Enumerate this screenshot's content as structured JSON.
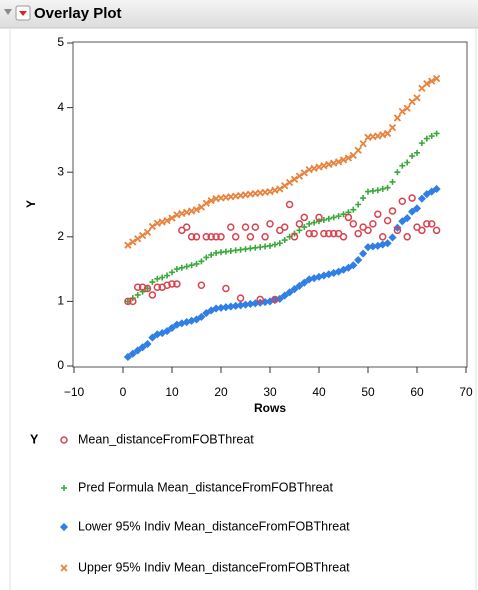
{
  "chart_data": {
    "type": "scatter",
    "title": "Overlay Plot",
    "x_label": "Rows",
    "y_label": "Y",
    "legend_title": "Y",
    "grid": false,
    "xlim": [
      -10,
      70
    ],
    "xticks": [
      {
        "value": -10,
        "label": "−10"
      },
      0,
      10,
      20,
      30,
      40,
      50,
      60,
      70
    ],
    "ylim": [
      0,
      5
    ],
    "yticks": [
      0,
      1,
      2,
      3,
      4,
      5
    ],
    "x": [
      1,
      2,
      3,
      4,
      5,
      6,
      7,
      8,
      9,
      10,
      11,
      12,
      13,
      14,
      15,
      16,
      17,
      18,
      19,
      20,
      21,
      22,
      23,
      24,
      25,
      26,
      27,
      28,
      29,
      30,
      31,
      32,
      33,
      34,
      35,
      36,
      37,
      38,
      39,
      40,
      41,
      42,
      43,
      44,
      45,
      46,
      47,
      48,
      49,
      50,
      51,
      52,
      53,
      54,
      55,
      56,
      57,
      58,
      59,
      60,
      61,
      62,
      63,
      64
    ],
    "series": [
      {
        "name": "Mean_distanceFromFOBThreat",
        "color": "#d9434f",
        "marker": "circle",
        "values": [
          1.0,
          1.0,
          1.22,
          1.22,
          1.2,
          1.1,
          1.22,
          1.22,
          1.25,
          1.27,
          1.27,
          2.1,
          2.15,
          2.0,
          2.0,
          1.25,
          2.0,
          2.0,
          2.0,
          2.0,
          1.2,
          2.15,
          2.0,
          1.05,
          2.15,
          2.0,
          2.15,
          1.03,
          2.0,
          2.2,
          1.03,
          2.1,
          2.15,
          2.5,
          2.0,
          2.2,
          2.3,
          2.05,
          2.05,
          2.3,
          2.05,
          2.05,
          2.05,
          2.05,
          2.0,
          2.3,
          2.2,
          2.05,
          2.15,
          2.1,
          2.2,
          2.35,
          2.0,
          2.25,
          2.4,
          2.1,
          2.55,
          2.0,
          2.6,
          2.15,
          2.1,
          2.2,
          2.2,
          2.1
        ]
      },
      {
        "name": "Pred Formula Mean_distanceFromFOBThreat",
        "color": "#3aa83a",
        "marker": "plus",
        "values": [
          1.0,
          1.05,
          1.1,
          1.15,
          1.2,
          1.3,
          1.35,
          1.37,
          1.4,
          1.45,
          1.5,
          1.52,
          1.54,
          1.56,
          1.58,
          1.62,
          1.68,
          1.72,
          1.75,
          1.76,
          1.77,
          1.78,
          1.79,
          1.8,
          1.81,
          1.82,
          1.83,
          1.84,
          1.85,
          1.86,
          1.88,
          1.9,
          1.95,
          2.0,
          2.05,
          2.1,
          2.15,
          2.2,
          2.22,
          2.24,
          2.26,
          2.28,
          2.3,
          2.32,
          2.35,
          2.38,
          2.42,
          2.5,
          2.6,
          2.7,
          2.71,
          2.72,
          2.74,
          2.76,
          2.85,
          3.0,
          3.1,
          3.15,
          3.25,
          3.3,
          3.45,
          3.52,
          3.56,
          3.6
        ]
      },
      {
        "name": "Lower 95% Indiv Mean_distanceFromFOBThreat",
        "color": "#2f7fe6",
        "marker": "diamond",
        "values": [
          0.14,
          0.19,
          0.24,
          0.29,
          0.34,
          0.44,
          0.49,
          0.51,
          0.54,
          0.59,
          0.64,
          0.66,
          0.68,
          0.7,
          0.72,
          0.76,
          0.82,
          0.86,
          0.89,
          0.9,
          0.91,
          0.92,
          0.93,
          0.94,
          0.95,
          0.96,
          0.97,
          0.98,
          0.99,
          1.0,
          1.02,
          1.04,
          1.09,
          1.14,
          1.19,
          1.24,
          1.29,
          1.34,
          1.36,
          1.38,
          1.4,
          1.42,
          1.44,
          1.46,
          1.49,
          1.52,
          1.56,
          1.64,
          1.74,
          1.84,
          1.85,
          1.86,
          1.88,
          1.9,
          1.99,
          2.14,
          2.24,
          2.29,
          2.39,
          2.44,
          2.59,
          2.66,
          2.7,
          2.74
        ]
      },
      {
        "name": "Upper 95% Indiv Mean_distanceFromFOBThreat",
        "color": "#e8823c",
        "marker": "x",
        "values": [
          1.87,
          1.92,
          1.97,
          2.02,
          2.07,
          2.16,
          2.21,
          2.23,
          2.25,
          2.29,
          2.34,
          2.36,
          2.38,
          2.4,
          2.42,
          2.46,
          2.52,
          2.56,
          2.59,
          2.6,
          2.61,
          2.62,
          2.63,
          2.64,
          2.65,
          2.66,
          2.67,
          2.68,
          2.69,
          2.7,
          2.72,
          2.74,
          2.79,
          2.84,
          2.89,
          2.94,
          2.99,
          3.04,
          3.06,
          3.08,
          3.1,
          3.12,
          3.14,
          3.16,
          3.19,
          3.22,
          3.26,
          3.34,
          3.44,
          3.54,
          3.55,
          3.56,
          3.58,
          3.6,
          3.69,
          3.84,
          3.94,
          3.99,
          4.09,
          4.15,
          4.3,
          4.37,
          4.41,
          4.45
        ]
      }
    ]
  }
}
